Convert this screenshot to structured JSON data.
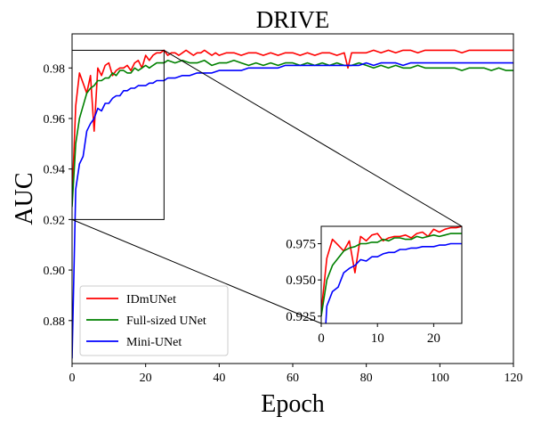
{
  "chart_data": {
    "type": "line",
    "title": "DRIVE",
    "xlabel": "Epoch",
    "ylabel": "AUC",
    "xlim": [
      0,
      120
    ],
    "ylim": [
      0.863,
      0.9935
    ],
    "xticks": [
      0,
      20,
      40,
      60,
      80,
      100,
      120
    ],
    "yticks": [
      0.88,
      0.9,
      0.92,
      0.94,
      0.96,
      0.98
    ],
    "ytick_labels": [
      "0.88",
      "0.90",
      "0.92",
      "0.94",
      "0.96",
      "0.98"
    ],
    "grid": false,
    "legend_position": "lower-left",
    "series": [
      {
        "name": "IDmUNet",
        "color": "#ff0000",
        "x": [
          0,
          1,
          2,
          3,
          4,
          5,
          6,
          7,
          8,
          9,
          10,
          11,
          12,
          13,
          14,
          15,
          16,
          17,
          18,
          19,
          20,
          21,
          22,
          23,
          24,
          25,
          26,
          27,
          28,
          29,
          30,
          31,
          32,
          33,
          34,
          35,
          36,
          37,
          38,
          39,
          40,
          42,
          44,
          46,
          48,
          50,
          52,
          54,
          56,
          58,
          60,
          62,
          64,
          66,
          68,
          70,
          72,
          74,
          75,
          76,
          78,
          80,
          82,
          84,
          86,
          88,
          90,
          92,
          94,
          96,
          98,
          100,
          102,
          104,
          106,
          108,
          110,
          112,
          114,
          116,
          118,
          120
        ],
        "y": [
          0.928,
          0.965,
          0.978,
          0.974,
          0.97,
          0.977,
          0.955,
          0.98,
          0.977,
          0.981,
          0.982,
          0.977,
          0.979,
          0.98,
          0.98,
          0.981,
          0.979,
          0.982,
          0.983,
          0.98,
          0.985,
          0.983,
          0.985,
          0.986,
          0.986,
          0.987,
          0.985,
          0.986,
          0.986,
          0.985,
          0.986,
          0.987,
          0.986,
          0.985,
          0.986,
          0.986,
          0.987,
          0.986,
          0.985,
          0.986,
          0.985,
          0.986,
          0.986,
          0.985,
          0.986,
          0.986,
          0.985,
          0.986,
          0.985,
          0.986,
          0.986,
          0.985,
          0.986,
          0.985,
          0.986,
          0.986,
          0.985,
          0.986,
          0.98,
          0.986,
          0.986,
          0.986,
          0.987,
          0.986,
          0.987,
          0.986,
          0.987,
          0.987,
          0.986,
          0.987,
          0.987,
          0.987,
          0.987,
          0.987,
          0.986,
          0.987,
          0.987,
          0.987,
          0.987,
          0.987,
          0.987,
          0.987
        ]
      },
      {
        "name": "Full-sized UNet",
        "color": "#008000",
        "x": [
          0,
          1,
          2,
          3,
          4,
          5,
          6,
          7,
          8,
          9,
          10,
          11,
          12,
          13,
          14,
          15,
          16,
          17,
          18,
          19,
          20,
          21,
          22,
          23,
          24,
          25,
          26,
          28,
          30,
          32,
          34,
          36,
          38,
          40,
          42,
          44,
          46,
          48,
          50,
          52,
          54,
          56,
          58,
          60,
          62,
          64,
          66,
          68,
          70,
          72,
          74,
          76,
          78,
          80,
          82,
          84,
          86,
          88,
          90,
          92,
          94,
          96,
          98,
          100,
          102,
          104,
          106,
          108,
          110,
          112,
          114,
          116,
          118,
          120
        ],
        "y": [
          0.925,
          0.95,
          0.96,
          0.965,
          0.97,
          0.972,
          0.973,
          0.975,
          0.975,
          0.976,
          0.976,
          0.978,
          0.977,
          0.979,
          0.979,
          0.978,
          0.978,
          0.98,
          0.979,
          0.98,
          0.981,
          0.98,
          0.981,
          0.982,
          0.982,
          0.982,
          0.983,
          0.982,
          0.983,
          0.982,
          0.982,
          0.983,
          0.981,
          0.982,
          0.982,
          0.983,
          0.982,
          0.981,
          0.982,
          0.981,
          0.982,
          0.981,
          0.982,
          0.982,
          0.981,
          0.982,
          0.981,
          0.982,
          0.981,
          0.982,
          0.981,
          0.981,
          0.982,
          0.981,
          0.98,
          0.981,
          0.98,
          0.981,
          0.98,
          0.98,
          0.981,
          0.98,
          0.98,
          0.98,
          0.98,
          0.98,
          0.979,
          0.98,
          0.98,
          0.98,
          0.979,
          0.98,
          0.979,
          0.979
        ]
      },
      {
        "name": "Mini-UNet",
        "color": "#0000ff",
        "x": [
          0,
          1,
          2,
          3,
          4,
          5,
          6,
          7,
          8,
          9,
          10,
          11,
          12,
          13,
          14,
          15,
          16,
          17,
          18,
          19,
          20,
          21,
          22,
          23,
          24,
          25,
          26,
          28,
          30,
          32,
          34,
          36,
          38,
          40,
          42,
          44,
          46,
          48,
          50,
          52,
          54,
          56,
          58,
          60,
          62,
          64,
          66,
          68,
          70,
          72,
          74,
          76,
          78,
          80,
          82,
          84,
          86,
          88,
          90,
          92,
          94,
          96,
          98,
          100,
          102,
          104,
          106,
          108,
          110,
          112,
          114,
          116,
          118,
          120
        ],
        "y": [
          0.865,
          0.932,
          0.942,
          0.945,
          0.955,
          0.958,
          0.96,
          0.964,
          0.963,
          0.966,
          0.966,
          0.968,
          0.969,
          0.969,
          0.971,
          0.971,
          0.972,
          0.972,
          0.973,
          0.973,
          0.973,
          0.974,
          0.974,
          0.975,
          0.975,
          0.975,
          0.976,
          0.976,
          0.977,
          0.977,
          0.978,
          0.978,
          0.978,
          0.979,
          0.979,
          0.979,
          0.979,
          0.98,
          0.98,
          0.98,
          0.98,
          0.98,
          0.981,
          0.981,
          0.981,
          0.981,
          0.981,
          0.981,
          0.981,
          0.981,
          0.981,
          0.981,
          0.981,
          0.982,
          0.981,
          0.982,
          0.982,
          0.982,
          0.981,
          0.982,
          0.982,
          0.982,
          0.982,
          0.982,
          0.982,
          0.982,
          0.982,
          0.982,
          0.982,
          0.982,
          0.982,
          0.982,
          0.982,
          0.982
        ]
      }
    ],
    "inset": {
      "xlim": [
        0,
        25
      ],
      "ylim": [
        0.92,
        0.987
      ],
      "xticks": [
        0,
        10,
        20
      ],
      "yticks": [
        0.925,
        0.95,
        0.975
      ],
      "ytick_labels": [
        "0.925",
        "0.950",
        "0.975"
      ]
    }
  }
}
